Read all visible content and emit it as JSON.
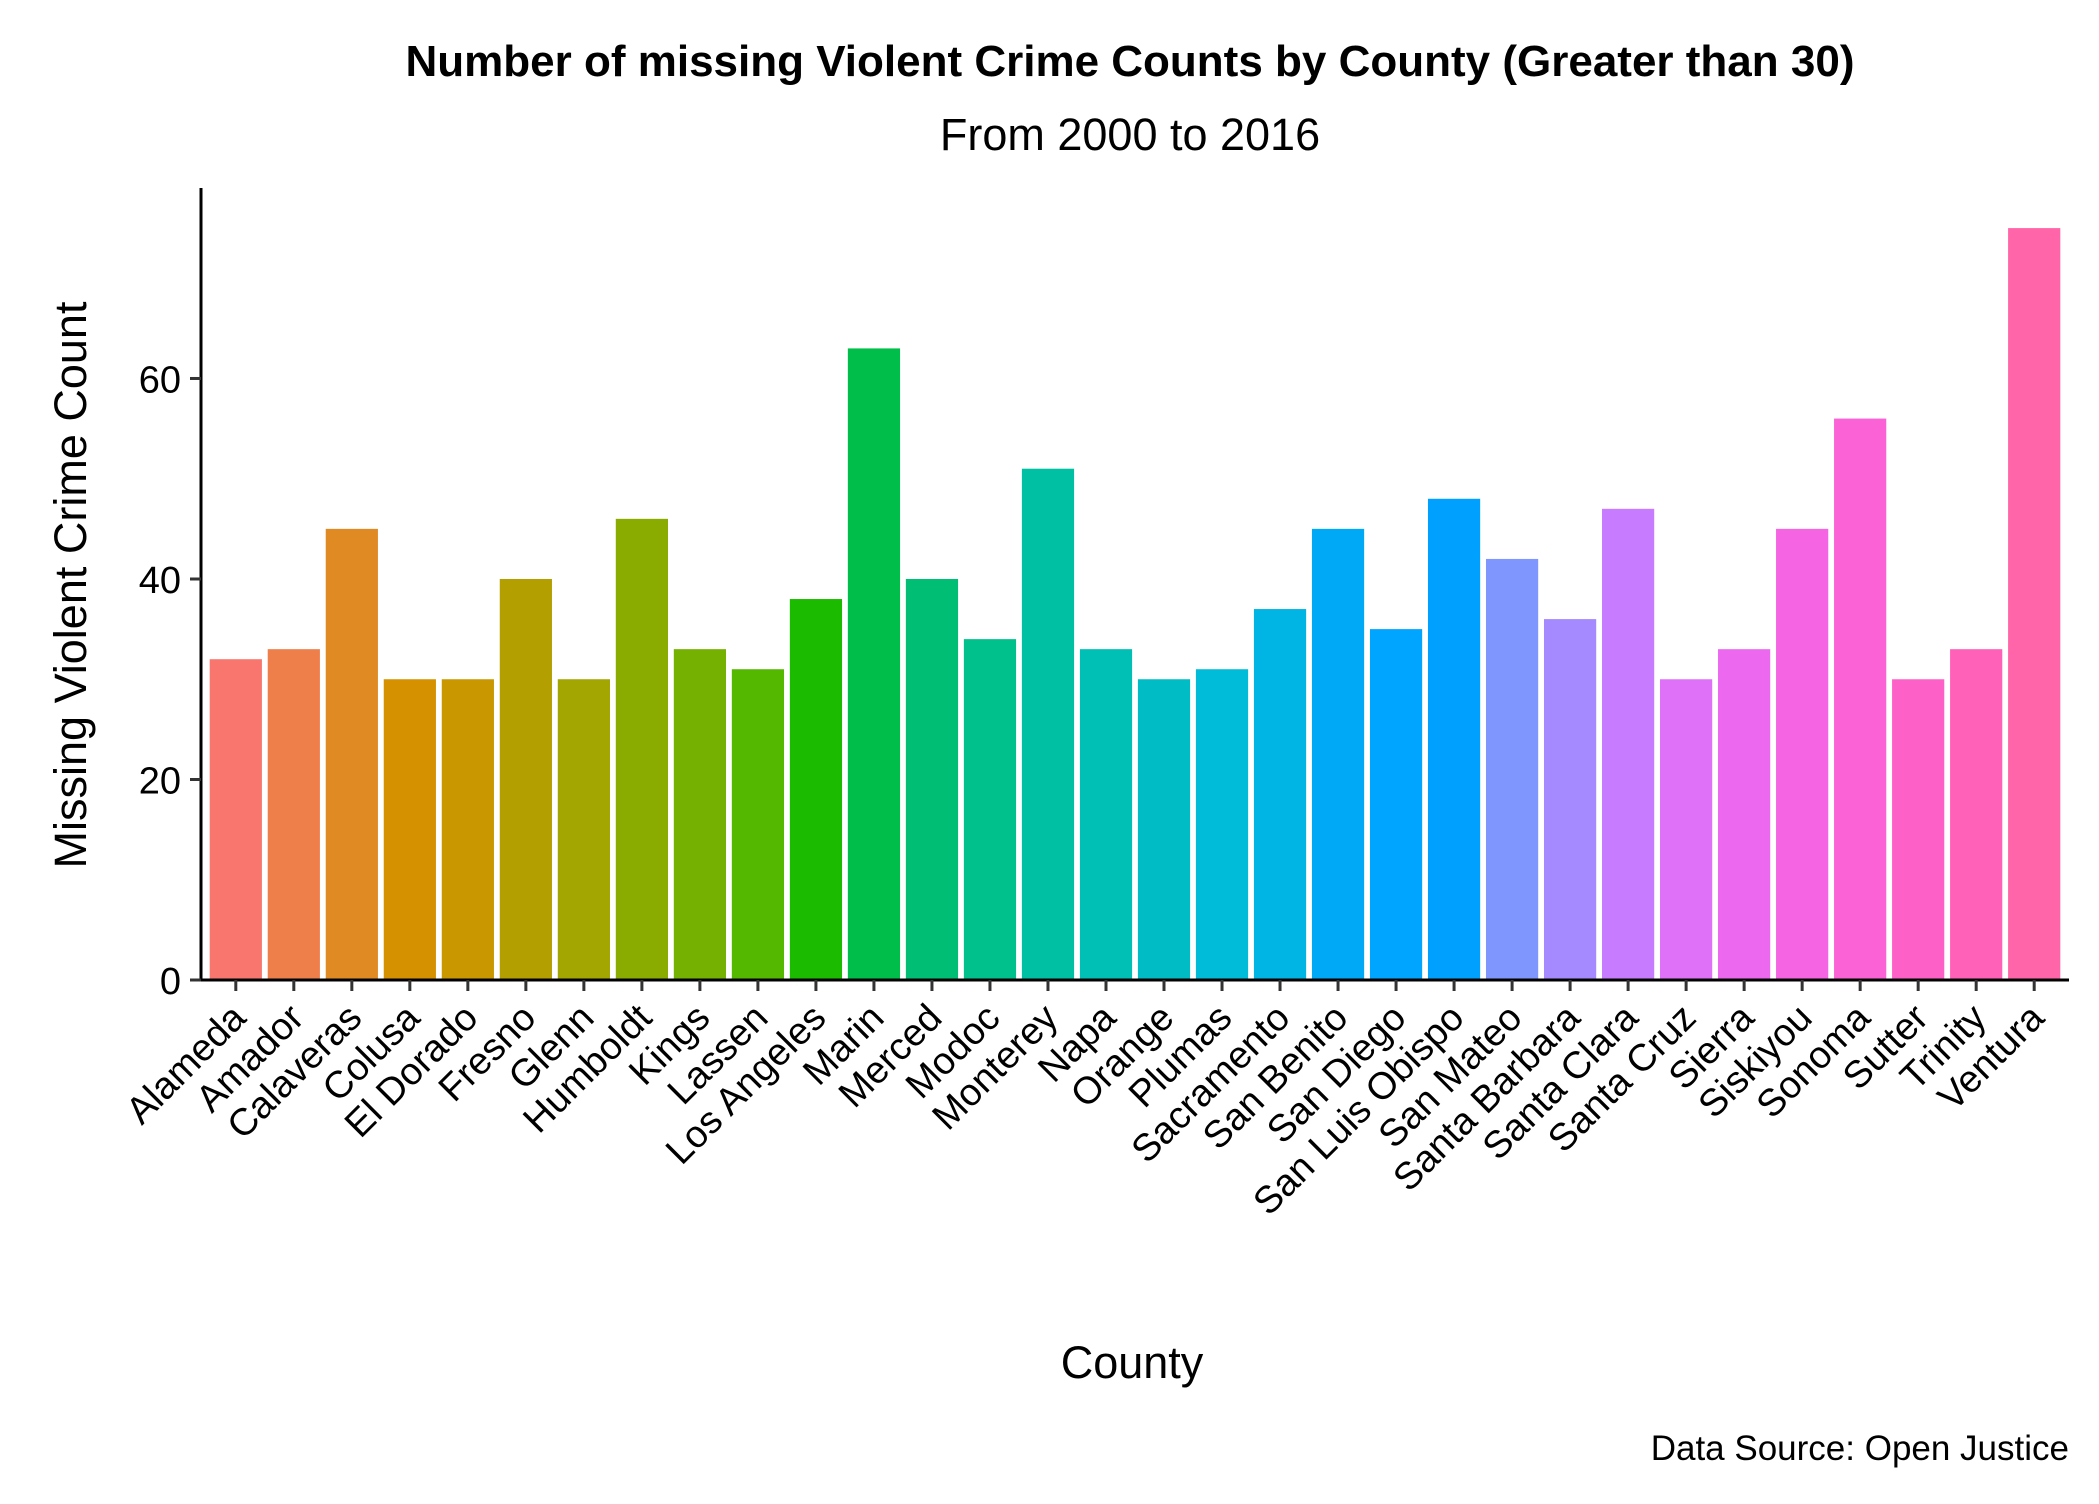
{
  "chart_data": {
    "type": "bar",
    "title": "Number of missing Violent Crime Counts by County (Greater than 30)",
    "subtitle": "From 2000 to 2016",
    "xlabel": "County",
    "ylabel": "Missing Violent Crime Count",
    "caption": "Data Source: Open Justice",
    "ylim": [
      0,
      79
    ],
    "yticks": [
      0,
      20,
      40,
      60
    ],
    "grid": false,
    "legend": "none",
    "categories": [
      "Alameda",
      "Amador",
      "Calaveras",
      "Colusa",
      "El Dorado",
      "Fresno",
      "Glenn",
      "Humboldt",
      "Kings",
      "Lassen",
      "Los Angeles",
      "Marin",
      "Merced",
      "Modoc",
      "Monterey",
      "Napa",
      "Orange",
      "Plumas",
      "Sacramento",
      "San Benito",
      "San Diego",
      "San Luis Obispo",
      "San Mateo",
      "Santa Barbara",
      "Santa Clara",
      "Santa Cruz",
      "Sierra",
      "Siskiyou",
      "Sonoma",
      "Sutter",
      "Trinity",
      "Ventura"
    ],
    "values": [
      32,
      33,
      45,
      30,
      30,
      40,
      30,
      46,
      33,
      31,
      38,
      63,
      40,
      34,
      51,
      33,
      30,
      31,
      37,
      45,
      35,
      48,
      42,
      36,
      47,
      30,
      33,
      45,
      56,
      30,
      33,
      75
    ],
    "colors": [
      "#F8766D",
      "#EE7F4A",
      "#E08A23",
      "#D59100",
      "#C99800",
      "#B49F00",
      "#A3A500",
      "#8AAB00",
      "#74B100",
      "#55B800",
      "#1BBB00",
      "#00BE4A",
      "#00BF74",
      "#00C08B",
      "#00C0A3",
      "#00BFB4",
      "#00BCC4",
      "#00BCD8",
      "#00B4E3",
      "#00A9F5",
      "#00A5FF",
      "#00A0FF",
      "#7F96FF",
      "#A58AFF",
      "#C77CFF",
      "#DF70F8",
      "#EC69EF",
      "#F564E3",
      "#FA62D5",
      "#FD61C7",
      "#FF61B9",
      "#FF65A8"
    ]
  }
}
